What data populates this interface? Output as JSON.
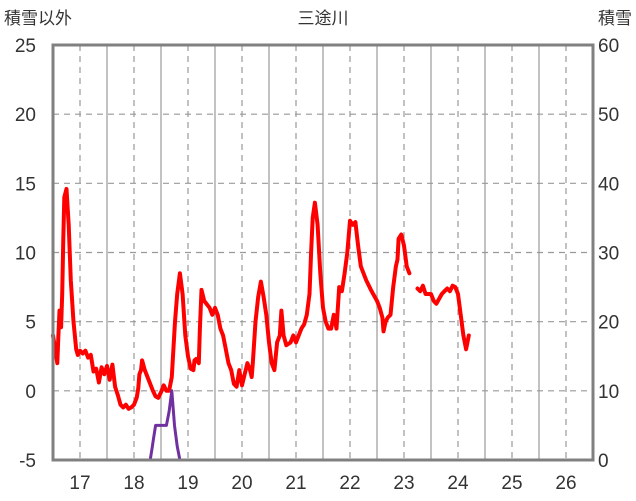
{
  "chart_data": {
    "type": "line",
    "title": "三途川",
    "left_axis_label": "積雪以外",
    "right_axis_label": "積雪",
    "x_ticks": [
      "17",
      "18",
      "19",
      "20",
      "21",
      "22",
      "23",
      "24",
      "25",
      "26"
    ],
    "xlim": [
      16.5,
      26.5
    ],
    "ylim_left": [
      -5,
      25
    ],
    "ylim_right": [
      0,
      60
    ],
    "y_ticks_left": [
      "-5",
      "0",
      "5",
      "10",
      "15",
      "20",
      "25"
    ],
    "y_ticks_right": [
      "0",
      "10",
      "20",
      "30",
      "40",
      "50",
      "60"
    ],
    "grid": {
      "horizontal": "dashed",
      "vertical": "dashed, solid at day boundaries"
    },
    "colors": {
      "temperature": "#ff0000",
      "snow": "#7030a0",
      "grid": "#999999",
      "frame": "#808080"
    },
    "series": [
      {
        "axis": "left",
        "color": "#ff0000",
        "points": [
          [
            16.5,
            4.0
          ],
          [
            16.54,
            3.0
          ],
          [
            16.58,
            2.0
          ],
          [
            16.6,
            4.0
          ],
          [
            16.62,
            5.8
          ],
          [
            16.65,
            4.6
          ],
          [
            16.67,
            7.0
          ],
          [
            16.69,
            11.0
          ],
          [
            16.71,
            14.0
          ],
          [
            16.75,
            14.6
          ],
          [
            16.79,
            12.0
          ],
          [
            16.83,
            8.0
          ],
          [
            16.88,
            5.0
          ],
          [
            16.93,
            3.0
          ],
          [
            16.96,
            2.6
          ],
          [
            17.0,
            2.9
          ],
          [
            17.05,
            2.7
          ],
          [
            17.1,
            2.9
          ],
          [
            17.15,
            2.4
          ],
          [
            17.2,
            2.6
          ],
          [
            17.25,
            1.4
          ],
          [
            17.3,
            1.6
          ],
          [
            17.35,
            0.6
          ],
          [
            17.4,
            1.7
          ],
          [
            17.45,
            1.2
          ],
          [
            17.5,
            1.8
          ],
          [
            17.55,
            0.8
          ],
          [
            17.6,
            1.9
          ],
          [
            17.65,
            0.3
          ],
          [
            17.7,
            -0.3
          ],
          [
            17.75,
            -1.0
          ],
          [
            17.8,
            -1.2
          ],
          [
            17.85,
            -1.0
          ],
          [
            17.9,
            -1.3
          ],
          [
            17.95,
            -1.2
          ],
          [
            18.0,
            -1.0
          ],
          [
            18.05,
            -0.5
          ],
          [
            18.08,
            0.2
          ],
          [
            18.1,
            1.2
          ],
          [
            18.13,
            1.5
          ],
          [
            18.15,
            2.2
          ],
          [
            18.2,
            1.5
          ],
          [
            18.25,
            1.0
          ],
          [
            18.3,
            0.5
          ],
          [
            18.35,
            0.0
          ],
          [
            18.4,
            -0.4
          ],
          [
            18.45,
            -0.5
          ],
          [
            18.5,
            -0.1
          ],
          [
            18.55,
            0.4
          ],
          [
            18.6,
            0.0
          ],
          [
            18.65,
            0.0
          ],
          [
            18.7,
            1.0
          ],
          [
            18.73,
            3.0
          ],
          [
            18.76,
            5.0
          ],
          [
            18.8,
            7.0
          ],
          [
            18.85,
            8.5
          ],
          [
            18.9,
            7.0
          ],
          [
            18.95,
            4.0
          ],
          [
            19.0,
            2.5
          ],
          [
            19.05,
            1.6
          ],
          [
            19.1,
            1.5
          ],
          [
            19.12,
            2.2
          ],
          [
            19.15,
            2.3
          ],
          [
            19.2,
            2.0
          ],
          [
            19.22,
            4.5
          ],
          [
            19.25,
            7.3
          ],
          [
            19.3,
            6.5
          ],
          [
            19.4,
            6.0
          ],
          [
            19.45,
            5.5
          ],
          [
            19.5,
            6.0
          ],
          [
            19.55,
            5.5
          ],
          [
            19.6,
            4.5
          ],
          [
            19.65,
            4.0
          ],
          [
            19.7,
            3.0
          ],
          [
            19.75,
            2.0
          ],
          [
            19.8,
            1.5
          ],
          [
            19.85,
            0.5
          ],
          [
            19.9,
            0.3
          ],
          [
            19.95,
            1.5
          ],
          [
            20.0,
            0.4
          ],
          [
            20.05,
            1.2
          ],
          [
            20.1,
            2.0
          ],
          [
            20.15,
            1.5
          ],
          [
            20.18,
            1.0
          ],
          [
            20.2,
            2.0
          ],
          [
            20.25,
            5.0
          ],
          [
            20.3,
            6.8
          ],
          [
            20.35,
            7.9
          ],
          [
            20.4,
            6.8
          ],
          [
            20.45,
            5.5
          ],
          [
            20.5,
            3.5
          ],
          [
            20.55,
            2.0
          ],
          [
            20.6,
            1.5
          ],
          [
            20.65,
            3.5
          ],
          [
            20.7,
            4.0
          ],
          [
            20.73,
            5.8
          ],
          [
            20.77,
            4.0
          ],
          [
            20.82,
            3.3
          ],
          [
            20.9,
            3.5
          ],
          [
            20.95,
            4.0
          ],
          [
            21.0,
            3.5
          ],
          [
            21.05,
            4.0
          ],
          [
            21.1,
            4.5
          ],
          [
            21.15,
            4.8
          ],
          [
            21.2,
            5.5
          ],
          [
            21.25,
            7.0
          ],
          [
            21.28,
            10.0
          ],
          [
            21.31,
            12.5
          ],
          [
            21.35,
            13.6
          ],
          [
            21.4,
            12.0
          ],
          [
            21.45,
            8.5
          ],
          [
            21.5,
            6.0
          ],
          [
            21.55,
            5.0
          ],
          [
            21.6,
            4.5
          ],
          [
            21.65,
            4.5
          ],
          [
            21.7,
            5.5
          ],
          [
            21.75,
            4.5
          ],
          [
            21.8,
            7.5
          ],
          [
            21.85,
            7.2
          ],
          [
            21.9,
            8.5
          ],
          [
            21.95,
            10.0
          ],
          [
            22.0,
            12.3
          ],
          [
            22.05,
            12.0
          ],
          [
            22.1,
            12.2
          ],
          [
            22.15,
            10.5
          ],
          [
            22.2,
            9.0
          ],
          [
            22.3,
            8.0
          ],
          [
            22.4,
            7.2
          ],
          [
            22.5,
            6.5
          ],
          [
            22.55,
            6.0
          ],
          [
            22.6,
            5.3
          ],
          [
            22.62,
            4.3
          ],
          [
            22.66,
            5.0
          ],
          [
            22.7,
            5.3
          ],
          [
            22.75,
            5.5
          ],
          [
            22.8,
            7.5
          ],
          [
            22.85,
            9.0
          ],
          [
            22.88,
            9.5
          ],
          [
            22.9,
            11.0
          ],
          [
            22.95,
            11.3
          ],
          [
            23.0,
            10.5
          ],
          [
            23.05,
            9.0
          ],
          [
            23.1,
            8.5
          ]
        ]
      },
      {
        "axis": "left",
        "color": "#ff0000",
        "points": [
          [
            23.25,
            7.4
          ],
          [
            23.3,
            7.2
          ],
          [
            23.35,
            7.6
          ],
          [
            23.4,
            7.0
          ],
          [
            23.5,
            7.0
          ],
          [
            23.55,
            6.5
          ],
          [
            23.6,
            6.3
          ],
          [
            23.7,
            7.0
          ],
          [
            23.75,
            7.2
          ],
          [
            23.8,
            7.4
          ],
          [
            23.85,
            7.2
          ],
          [
            23.9,
            7.6
          ],
          [
            23.95,
            7.5
          ],
          [
            24.0,
            7.0
          ],
          [
            24.05,
            5.5
          ],
          [
            24.1,
            4.0
          ],
          [
            24.15,
            3.0
          ],
          [
            24.2,
            4.0
          ]
        ]
      },
      {
        "axis": "right",
        "color": "#7030a0",
        "points": [
          [
            16.5,
            0
          ],
          [
            18.3,
            0
          ],
          [
            18.34,
            2
          ],
          [
            18.36,
            3
          ],
          [
            18.4,
            5
          ],
          [
            18.6,
            5
          ],
          [
            18.65,
            7
          ],
          [
            18.7,
            10
          ],
          [
            18.75,
            5
          ],
          [
            18.8,
            2
          ],
          [
            18.85,
            0
          ],
          [
            26.5,
            0
          ]
        ]
      }
    ]
  }
}
